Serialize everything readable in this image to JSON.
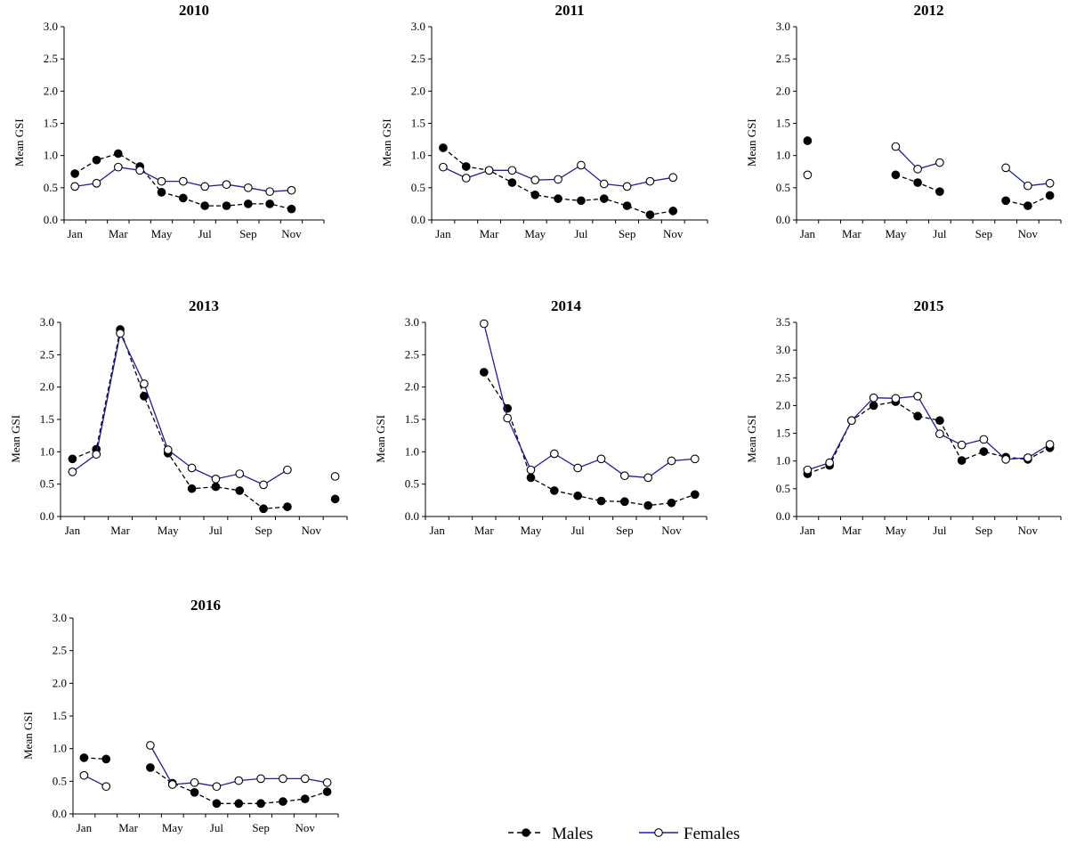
{
  "colors": {
    "males": "#000000",
    "females": "#1f1f9a",
    "axis": "#000000"
  },
  "legend": {
    "males_label": "Males",
    "females_label": "Females"
  },
  "chart_data": [
    {
      "type": "line",
      "title": "2010",
      "xlabel": "",
      "ylabel": "Mean GSI",
      "ylim": [
        0,
        3
      ],
      "yticks": [
        "0.0",
        "0.5",
        "1.0",
        "1.5",
        "2.0",
        "2.5",
        "3.0"
      ],
      "xticks": [
        {
          "m": 1,
          "label": "Jan"
        },
        {
          "m": 3,
          "label": "Mar"
        },
        {
          "m": 5,
          "label": "May"
        },
        {
          "m": 7,
          "label": "Jul"
        },
        {
          "m": 9,
          "label": "Sep"
        },
        {
          "m": 11,
          "label": "Nov"
        }
      ],
      "grid": false,
      "series": [
        {
          "name": "Males",
          "style": "dashed",
          "marker": "filled",
          "x": [
            1,
            2,
            3,
            4,
            5,
            6,
            7,
            8,
            9,
            10,
            11
          ],
          "values": [
            0.72,
            0.93,
            1.03,
            0.83,
            0.43,
            0.34,
            0.22,
            0.22,
            0.25,
            0.25,
            0.17
          ]
        },
        {
          "name": "Females",
          "style": "solid",
          "marker": "open",
          "x": [
            1,
            2,
            3,
            4,
            5,
            6,
            7,
            8,
            9,
            10,
            11
          ],
          "values": [
            0.52,
            0.57,
            0.82,
            0.77,
            0.6,
            0.6,
            0.52,
            0.55,
            0.5,
            0.44,
            0.46
          ]
        }
      ]
    },
    {
      "type": "line",
      "title": "2011",
      "xlabel": "",
      "ylabel": "Mean GSI",
      "ylim": [
        0,
        3
      ],
      "yticks": [
        "0.0",
        "0.5",
        "1.0",
        "1.5",
        "2.0",
        "2.5",
        "3.0"
      ],
      "xticks": [
        {
          "m": 1,
          "label": "Jan"
        },
        {
          "m": 3,
          "label": "Mar"
        },
        {
          "m": 5,
          "label": "May"
        },
        {
          "m": 7,
          "label": "Jul"
        },
        {
          "m": 9,
          "label": "Sep"
        },
        {
          "m": 11,
          "label": "Nov"
        }
      ],
      "grid": false,
      "series": [
        {
          "name": "Males",
          "style": "dashed",
          "marker": "filled",
          "x": [
            1,
            2,
            3,
            4,
            5,
            6,
            7,
            8,
            9,
            10,
            11
          ],
          "values": [
            1.12,
            0.83,
            0.77,
            0.58,
            0.39,
            0.33,
            0.3,
            0.33,
            0.22,
            0.08,
            0.14
          ]
        },
        {
          "name": "Females",
          "style": "solid",
          "marker": "open",
          "x": [
            1,
            2,
            3,
            4,
            5,
            6,
            7,
            8,
            9,
            10,
            11
          ],
          "values": [
            0.82,
            0.65,
            0.77,
            0.77,
            0.62,
            0.63,
            0.85,
            0.56,
            0.52,
            0.6,
            0.66
          ]
        }
      ]
    },
    {
      "type": "line",
      "title": "2012",
      "xlabel": "",
      "ylabel": "Mean GSI",
      "ylim": [
        0,
        3
      ],
      "yticks": [
        "0.0",
        "0.5",
        "1.0",
        "1.5",
        "2.0",
        "2.5",
        "3.0"
      ],
      "xticks": [
        {
          "m": 1,
          "label": "Jan"
        },
        {
          "m": 3,
          "label": "Mar"
        },
        {
          "m": 5,
          "label": "May"
        },
        {
          "m": 7,
          "label": "Jul"
        },
        {
          "m": 9,
          "label": "Sep"
        },
        {
          "m": 11,
          "label": "Nov"
        }
      ],
      "grid": false,
      "series": [
        {
          "name": "Males",
          "style": "dashed",
          "marker": "filled",
          "x": [
            1,
            null,
            null,
            null,
            5,
            6,
            7,
            null,
            null,
            10,
            11,
            12
          ],
          "values": [
            1.23,
            null,
            null,
            null,
            0.7,
            0.58,
            0.44,
            null,
            null,
            0.3,
            0.22,
            0.38
          ]
        },
        {
          "name": "Females",
          "style": "solid",
          "marker": "open",
          "x": [
            1,
            null,
            null,
            null,
            5,
            6,
            7,
            null,
            null,
            10,
            11,
            12
          ],
          "values": [
            0.7,
            null,
            null,
            null,
            1.14,
            0.79,
            0.89,
            null,
            null,
            0.81,
            0.53,
            0.57
          ]
        }
      ]
    },
    {
      "type": "line",
      "title": "2013",
      "xlabel": "",
      "ylabel": "Mean GSI",
      "ylim": [
        0,
        3
      ],
      "yticks": [
        "0.0",
        "0.5",
        "1.0",
        "1.5",
        "2.0",
        "2.5",
        "3.0"
      ],
      "xticks": [
        {
          "m": 1,
          "label": "Jan"
        },
        {
          "m": 3,
          "label": "Mar"
        },
        {
          "m": 5,
          "label": "May"
        },
        {
          "m": 7,
          "label": "Jul"
        },
        {
          "m": 9,
          "label": "Sep"
        },
        {
          "m": 11,
          "label": "Nov"
        }
      ],
      "grid": false,
      "series": [
        {
          "name": "Males",
          "style": "dashed",
          "marker": "filled",
          "x": [
            1,
            2,
            3,
            4,
            5,
            6,
            7,
            8,
            9,
            10,
            null,
            12
          ],
          "values": [
            0.89,
            1.04,
            2.89,
            1.86,
            0.98,
            0.43,
            0.46,
            0.4,
            0.12,
            0.15,
            null,
            0.27
          ]
        },
        {
          "name": "Females",
          "style": "solid",
          "marker": "open",
          "x": [
            1,
            2,
            3,
            4,
            5,
            6,
            7,
            8,
            9,
            10,
            null,
            12
          ],
          "values": [
            0.69,
            0.96,
            2.83,
            2.05,
            1.03,
            0.75,
            0.58,
            0.66,
            0.49,
            0.72,
            null,
            0.62
          ]
        }
      ]
    },
    {
      "type": "line",
      "title": "2014",
      "xlabel": "",
      "ylabel": "Mean GSI",
      "ylim": [
        0,
        3
      ],
      "yticks": [
        "0.0",
        "0.5",
        "1.0",
        "1.5",
        "2.0",
        "2.5",
        "3.0"
      ],
      "xticks": [
        {
          "m": 1,
          "label": "Jan"
        },
        {
          "m": 3,
          "label": "Mar"
        },
        {
          "m": 5,
          "label": "May"
        },
        {
          "m": 7,
          "label": "Jul"
        },
        {
          "m": 9,
          "label": "Sep"
        },
        {
          "m": 11,
          "label": "Nov"
        }
      ],
      "grid": false,
      "series": [
        {
          "name": "Males",
          "style": "dashed",
          "marker": "filled",
          "x": [
            3,
            4,
            5,
            6,
            7,
            8,
            9,
            10,
            11,
            12
          ],
          "values": [
            2.23,
            1.67,
            0.6,
            0.4,
            0.32,
            0.24,
            0.23,
            0.17,
            0.21,
            0.34
          ]
        },
        {
          "name": "Females",
          "style": "solid",
          "marker": "open",
          "x": [
            3,
            4,
            5,
            6,
            7,
            8,
            9,
            10,
            11,
            12
          ],
          "values": [
            2.98,
            1.52,
            0.72,
            0.97,
            0.75,
            0.89,
            0.63,
            0.6,
            0.86,
            0.89
          ]
        }
      ]
    },
    {
      "type": "line",
      "title": "2015",
      "xlabel": "",
      "ylabel": "Mean GSI",
      "ylim": [
        0,
        3.5
      ],
      "yticks": [
        "0.0",
        "0.5",
        "1.0",
        "1.5",
        "2.0",
        "2.5",
        "3.0",
        "3.5"
      ],
      "xticks": [
        {
          "m": 1,
          "label": "Jan"
        },
        {
          "m": 3,
          "label": "Mar"
        },
        {
          "m": 5,
          "label": "May"
        },
        {
          "m": 7,
          "label": "Jul"
        },
        {
          "m": 9,
          "label": "Sep"
        },
        {
          "m": 11,
          "label": "Nov"
        }
      ],
      "grid": false,
      "series": [
        {
          "name": "Males",
          "style": "dashed",
          "marker": "filled",
          "x": [
            1,
            2,
            3,
            4,
            5,
            6,
            7,
            8,
            9,
            10,
            11,
            12
          ],
          "values": [
            0.77,
            0.92,
            1.73,
            2.0,
            2.07,
            1.81,
            1.73,
            1.01,
            1.17,
            1.07,
            1.03,
            1.24
          ]
        },
        {
          "name": "Females",
          "style": "solid",
          "marker": "open",
          "x": [
            1,
            2,
            3,
            4,
            5,
            6,
            7,
            8,
            9,
            10,
            11,
            12
          ],
          "values": [
            0.84,
            0.97,
            1.73,
            2.14,
            2.13,
            2.17,
            1.49,
            1.29,
            1.39,
            1.03,
            1.06,
            1.3
          ]
        }
      ]
    },
    {
      "type": "line",
      "title": "2016",
      "xlabel": "",
      "ylabel": "Mean GSI",
      "ylim": [
        0,
        3
      ],
      "yticks": [
        "0.0",
        "0.5",
        "1.0",
        "1.5",
        "2.0",
        "2.5",
        "3.0"
      ],
      "xticks": [
        {
          "m": 1,
          "label": "Jan"
        },
        {
          "m": 3,
          "label": "Mar"
        },
        {
          "m": 5,
          "label": "May"
        },
        {
          "m": 7,
          "label": "Jul"
        },
        {
          "m": 9,
          "label": "Sep"
        },
        {
          "m": 11,
          "label": "Nov"
        }
      ],
      "grid": false,
      "series": [
        {
          "name": "Males",
          "style": "dashed",
          "marker": "filled",
          "x": [
            1,
            2,
            null,
            4,
            5,
            6,
            7,
            8,
            9,
            10,
            11,
            12
          ],
          "values": [
            0.86,
            0.84,
            null,
            0.71,
            0.47,
            0.33,
            0.16,
            0.16,
            0.16,
            0.19,
            0.23,
            0.34
          ]
        },
        {
          "name": "Females",
          "style": "solid",
          "marker": "open",
          "x": [
            1,
            2,
            null,
            4,
            5,
            6,
            7,
            8,
            9,
            10,
            11,
            12
          ],
          "values": [
            0.59,
            0.42,
            null,
            1.05,
            0.45,
            0.48,
            0.42,
            0.51,
            0.54,
            0.54,
            0.54,
            0.48
          ]
        }
      ]
    }
  ]
}
